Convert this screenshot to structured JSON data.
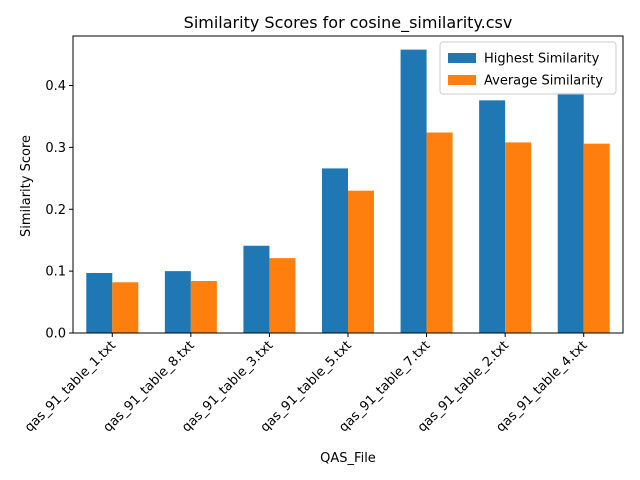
{
  "chart_data": {
    "type": "bar",
    "title": "Similarity Scores for cosine_similarity.csv",
    "xlabel": "QAS_File",
    "ylabel": "Similarity Score",
    "categories": [
      "qas_91_table_1.txt",
      "qas_91_table_8.txt",
      "qas_91_table_3.txt",
      "qas_91_table_5.txt",
      "qas_91_table_7.txt",
      "qas_91_table_2.txt",
      "qas_91_table_4.txt"
    ],
    "series": [
      {
        "name": "Highest Similarity",
        "color": "#1f77b4",
        "values": [
          0.097,
          0.1,
          0.141,
          0.266,
          0.458,
          0.376,
          0.388
        ]
      },
      {
        "name": "Average Similarity",
        "color": "#ff7f0e",
        "values": [
          0.082,
          0.084,
          0.121,
          0.23,
          0.324,
          0.308,
          0.306
        ]
      }
    ],
    "ylim": [
      0,
      0.48
    ],
    "yticks": [
      0.0,
      0.1,
      0.2,
      0.3,
      0.4
    ],
    "ytick_labels": [
      "0.0",
      "0.1",
      "0.2",
      "0.3",
      "0.4"
    ],
    "grid": false,
    "legend_position": "top-right"
  }
}
